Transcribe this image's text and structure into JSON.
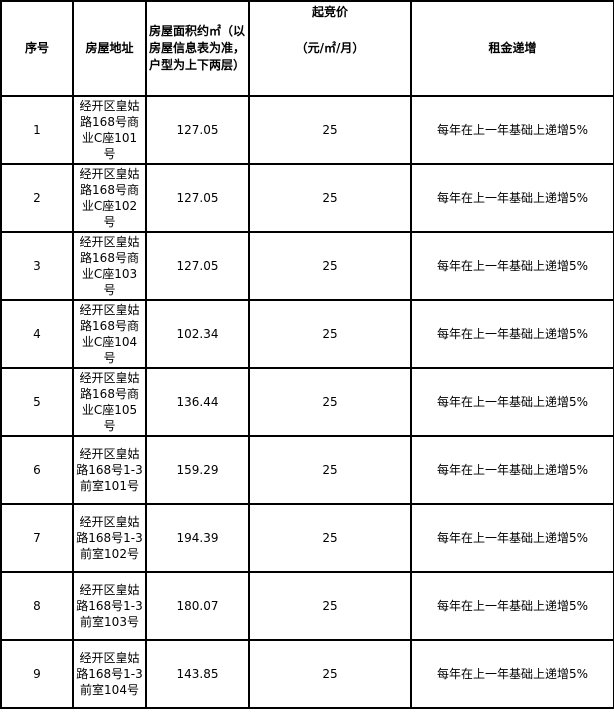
{
  "headers": {
    "index": "序号",
    "address": "房屋地址",
    "area": "房屋面积约㎡（以房屋信息表为准，户型为上下两层）",
    "price_title": "起竞价",
    "price_unit": "（元/㎡/月）",
    "increase": "租金递增"
  },
  "rows": [
    {
      "index": "1",
      "address": "经开区皇姑路168号商业C座101号",
      "area": "127.05",
      "price": "25",
      "increase": "每年在上一年基础上递增5%"
    },
    {
      "index": "2",
      "address": "经开区皇姑路168号商业C座102号",
      "area": "127.05",
      "price": "25",
      "increase": "每年在上一年基础上递增5%"
    },
    {
      "index": "3",
      "address": "经开区皇姑路168号商业C座103号",
      "area": "127.05",
      "price": "25",
      "increase": "每年在上一年基础上递增5%"
    },
    {
      "index": "4",
      "address": "经开区皇姑路168号商业C座104号",
      "area": "102.34",
      "price": "25",
      "increase": "每年在上一年基础上递增5%"
    },
    {
      "index": "5",
      "address": "经开区皇姑路168号商业C座105号",
      "area": "136.44",
      "price": "25",
      "increase": "每年在上一年基础上递增5%"
    },
    {
      "index": "6",
      "address": "经开区皇姑路168号1-3前室101号",
      "area": "159.29",
      "price": "25",
      "increase": "每年在上一年基础上递增5%"
    },
    {
      "index": "7",
      "address": "经开区皇姑路168号1-3前室102号",
      "area": "194.39",
      "price": "25",
      "increase": "每年在上一年基础上递增5%"
    },
    {
      "index": "8",
      "address": "经开区皇姑路168号1-3前室103号",
      "area": "180.07",
      "price": "25",
      "increase": "每年在上一年基础上递增5%"
    },
    {
      "index": "9",
      "address": "经开区皇姑路168号1-3前室104号",
      "area": "143.85",
      "price": "25",
      "increase": "每年在上一年基础上递增5%"
    }
  ]
}
